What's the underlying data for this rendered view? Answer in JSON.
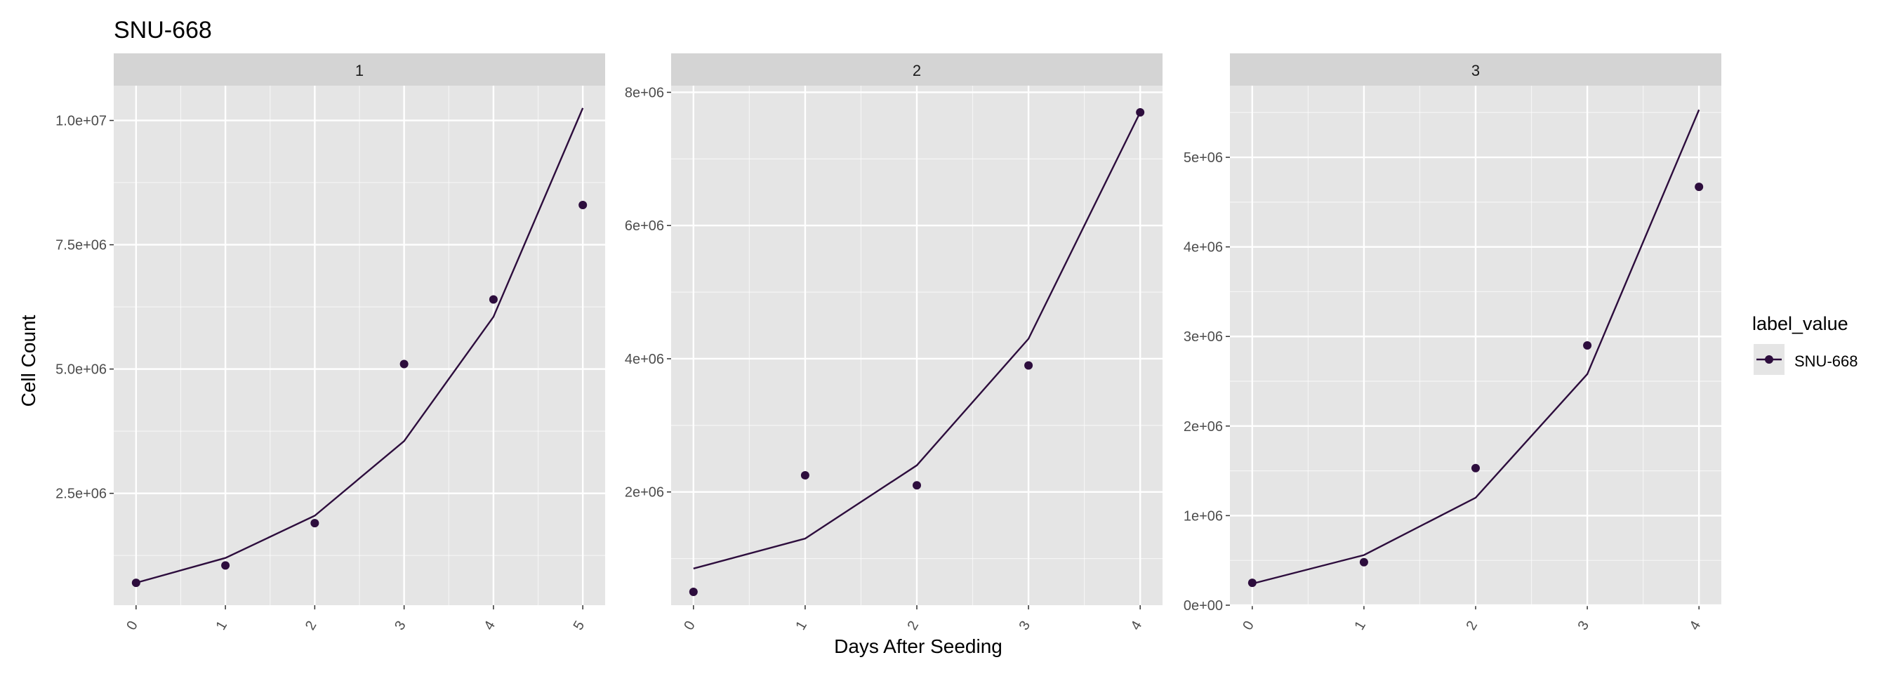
{
  "chart_data": {
    "type": "line",
    "title": "SNU-668",
    "xlabel": "Days After Seeding",
    "ylabel": "Cell Count",
    "legend": {
      "title": "label_value",
      "entries": [
        "SNU-668"
      ],
      "position": "right"
    },
    "colors": {
      "series": "#2d0d3d",
      "panel_bg": "#e5e5e5",
      "strip_bg": "#d4d4d4",
      "grid": "#ffffff",
      "text": "#4d4d4d"
    },
    "grid": true,
    "panels": [
      {
        "strip_label": "1",
        "x": [
          0,
          1,
          2,
          3,
          4,
          5
        ],
        "xlim": [
          -0.25,
          5.25
        ],
        "x_ticks": [
          0,
          1,
          2,
          3,
          4,
          5
        ],
        "x_tick_labels": [
          "0",
          "1",
          "2",
          "3",
          "4",
          "5"
        ],
        "ylim": [
          250000,
          10700000
        ],
        "y_ticks": [
          2500000,
          5000000,
          7500000,
          10000000
        ],
        "y_tick_labels": [
          "2.5e+06",
          "5.0e+06",
          "7.5e+06",
          "1.0e+07"
        ],
        "points": [
          700000,
          1050000,
          1900000,
          5100000,
          6400000,
          8300000
        ],
        "fit": [
          700000,
          1200000,
          2050000,
          3550000,
          6050000,
          10250000
        ]
      },
      {
        "strip_label": "2",
        "x": [
          0,
          1,
          2,
          3,
          4
        ],
        "xlim": [
          -0.2,
          4.2
        ],
        "x_ticks": [
          0,
          1,
          2,
          3,
          4
        ],
        "x_tick_labels": [
          "0",
          "1",
          "2",
          "3",
          "4"
        ],
        "ylim": [
          300000,
          8100000
        ],
        "y_ticks": [
          2000000,
          4000000,
          6000000,
          8000000
        ],
        "y_tick_labels": [
          "2e+06",
          "4e+06",
          "6e+06",
          "8e+06"
        ],
        "points": [
          500000,
          2250000,
          2100000,
          3900000,
          7700000
        ],
        "fit": [
          850000,
          1300000,
          2400000,
          4300000,
          7700000
        ]
      },
      {
        "strip_label": "3",
        "x": [
          0,
          1,
          2,
          3,
          4
        ],
        "xlim": [
          -0.2,
          4.2
        ],
        "x_ticks": [
          0,
          1,
          2,
          3,
          4
        ],
        "x_tick_labels": [
          "0",
          "1",
          "2",
          "3",
          "4"
        ],
        "ylim": [
          0,
          5800000
        ],
        "y_ticks": [
          0,
          1000000,
          2000000,
          3000000,
          4000000,
          5000000
        ],
        "y_tick_labels": [
          "0e+00",
          "1e+06",
          "2e+06",
          "3e+06",
          "4e+06",
          "5e+06"
        ],
        "points": [
          250000,
          480000,
          1530000,
          2900000,
          4670000
        ],
        "fit": [
          240000,
          560000,
          1200000,
          2580000,
          5530000
        ]
      }
    ]
  }
}
